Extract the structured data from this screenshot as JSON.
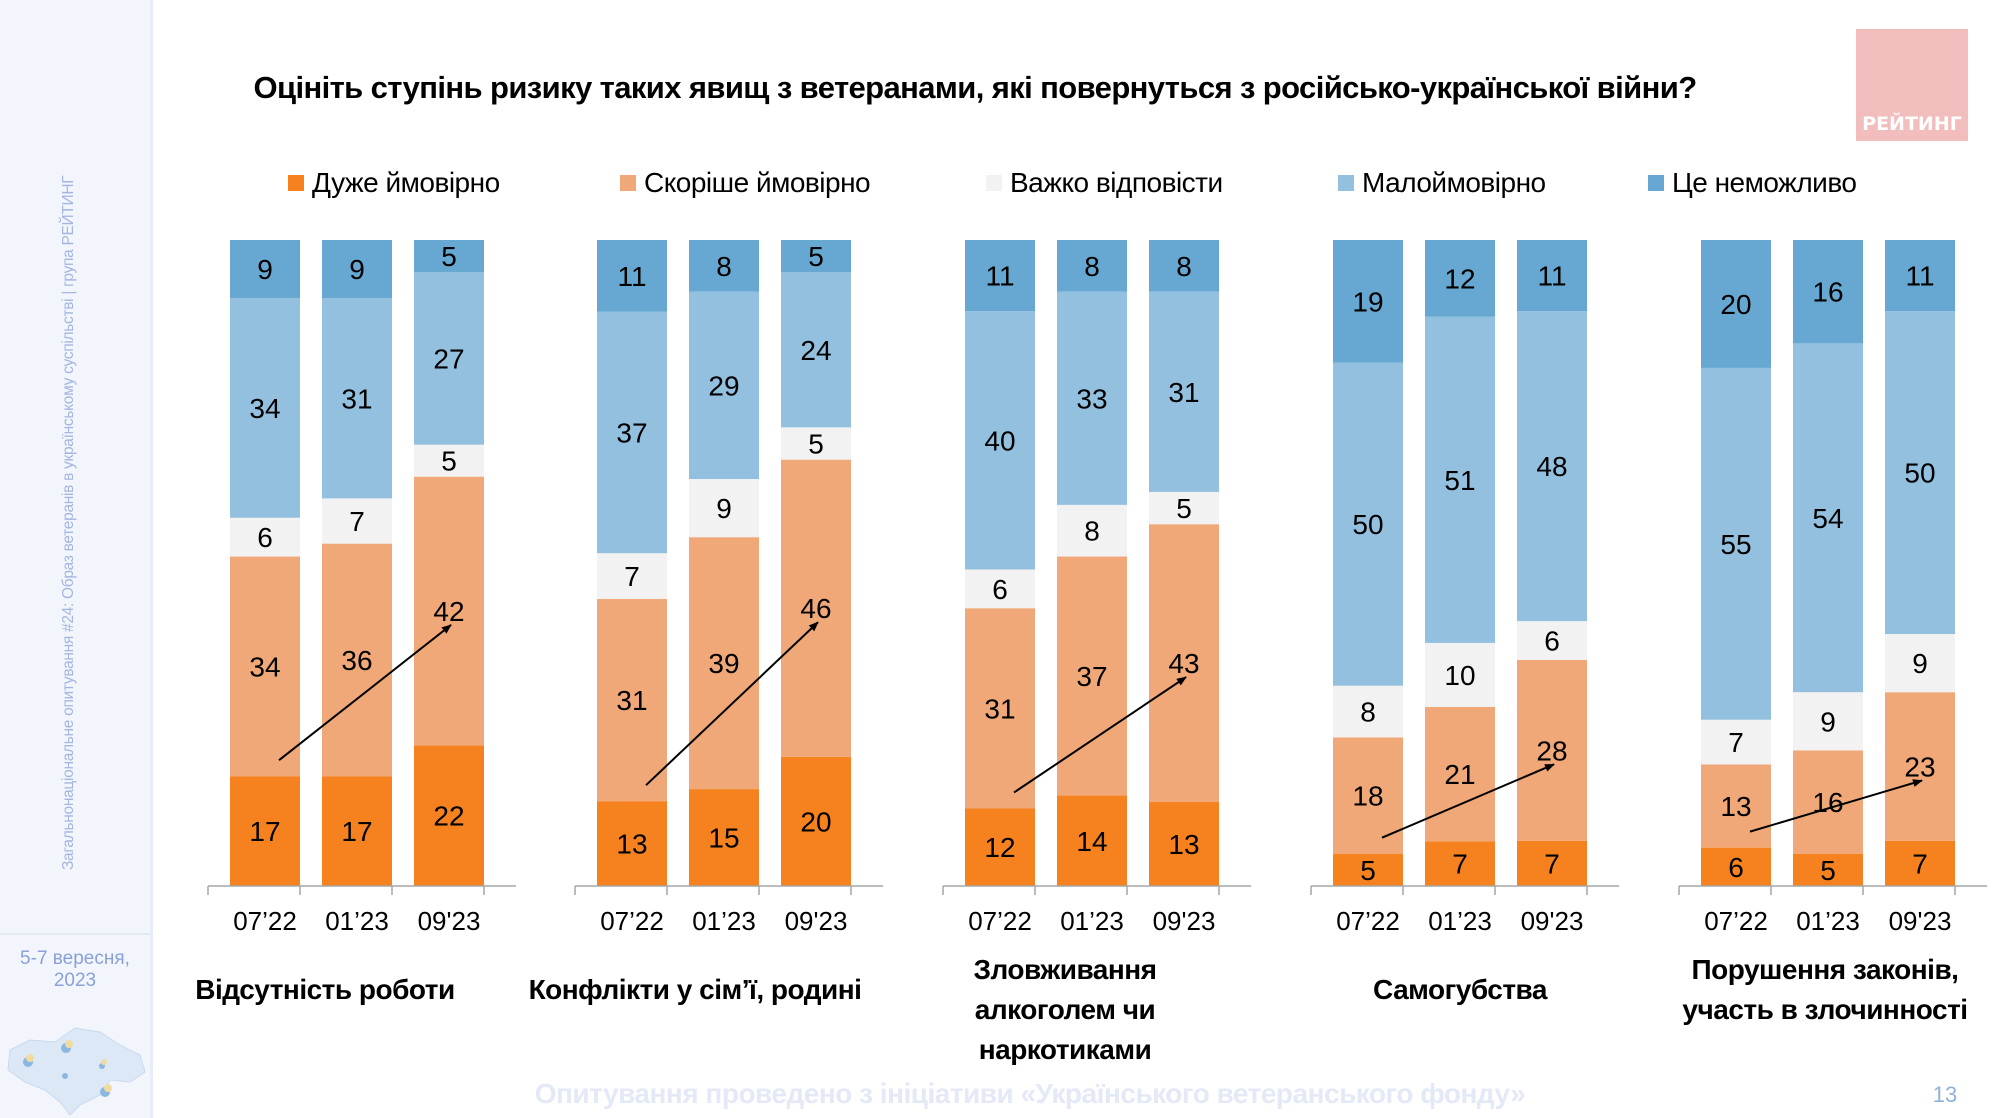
{
  "sidebar": {
    "vertical_text": "Загальнонаціональне опитування #24: Образ ветеранів в українському суспільстві | група РЕЙТИНГ",
    "date_line1": "5-7 вересня,",
    "date_line2": "2023"
  },
  "logo": {
    "text": "РЕЙТИНГ",
    "color": "#f2bdbd"
  },
  "footer": {
    "text": "Опитування проведено з ініціативи «Українського ветеранського фонду»",
    "page_number": "13"
  },
  "chart_data": {
    "type": "bar",
    "stacked": true,
    "percent": true,
    "title": "Оцініть ступінь ризику таких явищ з ветеранами, які повернуться з російсько-української війни?",
    "xlabel": "",
    "ylabel": "",
    "ylim": [
      0,
      100
    ],
    "grid": false,
    "legend_position": "top",
    "legend": [
      {
        "name": "Дуже ймовірно",
        "color": "#f5821f"
      },
      {
        "name": "Скоріше ймовірно",
        "color": "#f0a878"
      },
      {
        "name": "Важко відповісти",
        "color": "#f2f2f2"
      },
      {
        "name": "Малоймовірно",
        "color": "#93c0df"
      },
      {
        "name": "Це неможливо",
        "color": "#66a8d2"
      }
    ],
    "periods": [
      "07’22",
      "01’23",
      "09'23"
    ],
    "groups": [
      {
        "label": "Відсутність роботи",
        "bars": [
          {
            "period": "07’22",
            "values": [
              17,
              34,
              6,
              34,
              9
            ]
          },
          {
            "period": "01’23",
            "values": [
              17,
              36,
              7,
              31,
              9
            ]
          },
          {
            "period": "09'23",
            "values": [
              22,
              42,
              5,
              27,
              5
            ]
          }
        ]
      },
      {
        "label": "Конфлікти у сім’ї, родині",
        "bars": [
          {
            "period": "07’22",
            "values": [
              13,
              31,
              7,
              37,
              11
            ]
          },
          {
            "period": "01’23",
            "values": [
              15,
              39,
              9,
              29,
              8
            ]
          },
          {
            "period": "09'23",
            "values": [
              20,
              46,
              5,
              24,
              5
            ]
          }
        ]
      },
      {
        "label": "Зловживання алкоголем чи наркотиками",
        "bars": [
          {
            "period": "07’22",
            "values": [
              12,
              31,
              6,
              40,
              11
            ]
          },
          {
            "period": "01’23",
            "values": [
              14,
              37,
              8,
              33,
              8
            ]
          },
          {
            "period": "09'23",
            "values": [
              13,
              43,
              5,
              31,
              8
            ]
          }
        ]
      },
      {
        "label": "Самогубства",
        "bars": [
          {
            "period": "07’22",
            "values": [
              5,
              18,
              8,
              50,
              19
            ]
          },
          {
            "period": "01’23",
            "values": [
              7,
              21,
              10,
              51,
              12
            ]
          },
          {
            "period": "09'23",
            "values": [
              7,
              28,
              6,
              48,
              11
            ]
          }
        ]
      },
      {
        "label": "Порушення законів, участь в злочинності",
        "bars": [
          {
            "period": "07’22",
            "values": [
              6,
              13,
              7,
              55,
              20
            ]
          },
          {
            "period": "01’23",
            "values": [
              5,
              16,
              9,
              54,
              16
            ]
          },
          {
            "period": "09'23",
            "values": [
              7,
              23,
              9,
              50,
              11
            ]
          }
        ]
      }
    ],
    "annotations": [
      {
        "type": "trend-arrow",
        "group": "Відсутність роботи",
        "from_period": "07’22",
        "to_period": "09'23"
      },
      {
        "type": "trend-arrow",
        "group": "Конфлікти у сім’ї, родині",
        "from_period": "07’22",
        "to_period": "09'23"
      },
      {
        "type": "trend-arrow",
        "group": "Зловживання алкоголем чи наркотиками",
        "from_period": "07’22",
        "to_period": "09'23"
      },
      {
        "type": "trend-arrow",
        "group": "Самогубства",
        "from_period": "07’22",
        "to_period": "09'23"
      },
      {
        "type": "trend-arrow",
        "group": "Порушення законів, участь в злочинності",
        "from_period": "07’22",
        "to_period": "09'23"
      }
    ]
  }
}
